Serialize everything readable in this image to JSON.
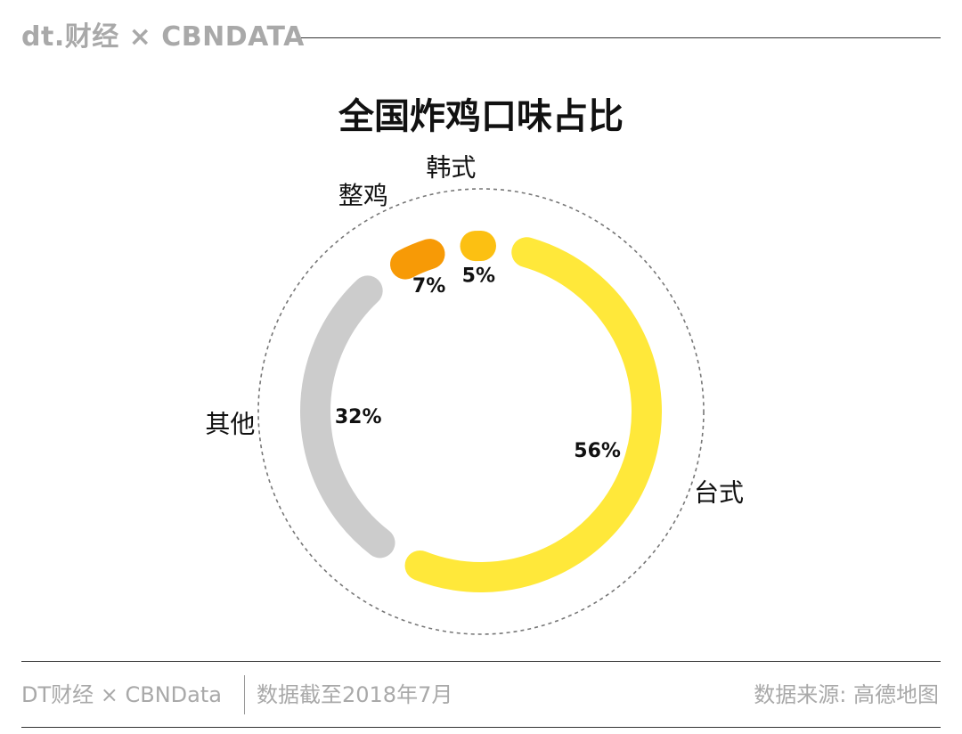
{
  "header": {
    "brand": "dt.财经 × CBNDATA"
  },
  "chart_data": {
    "type": "pie",
    "variant": "donut",
    "title": "全国炸鸡口味占比",
    "slices": [
      {
        "label": "台式",
        "value": 56,
        "value_label": "56%",
        "color": "#FFE83A"
      },
      {
        "label": "其他",
        "value": 32,
        "value_label": "32%",
        "color": "#CCCCCC"
      },
      {
        "label": "整鸡",
        "value": 7,
        "value_label": "7%",
        "color": "#F79A06"
      },
      {
        "label": "韩式",
        "value": 5,
        "value_label": "5%",
        "color": "#FCC012"
      }
    ],
    "unit": "%"
  },
  "footer": {
    "brand": "DT财经 × CBNData",
    "date_note": "数据截至2018年7月",
    "source": "数据来源: 高德地图"
  }
}
